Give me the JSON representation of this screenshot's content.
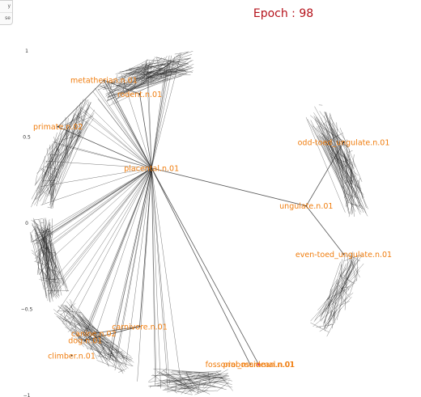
{
  "controls": {
    "buttons": [
      "y",
      "se"
    ]
  },
  "title": "Epoch : 98",
  "colors": {
    "title": "#b5121b",
    "label": "#f07d0e",
    "edge": "#222222",
    "highlight": "#d0409a"
  },
  "chart_data": {
    "type": "scatter",
    "title": "Epoch : 98",
    "xlim": [
      -1,
      1
    ],
    "ylim": [
      -1,
      1
    ],
    "yticks": [
      {
        "value": 1,
        "label": "1"
      },
      {
        "value": 0.5,
        "label": "0.5"
      },
      {
        "value": 0,
        "label": "0"
      },
      {
        "value": -0.5,
        "label": "−0.5"
      },
      {
        "value": -1,
        "label": "−1"
      }
    ],
    "grid": false,
    "nodes": [
      {
        "id": "placental",
        "label": "placental.n.01",
        "x": -0.28,
        "y": 0.32
      },
      {
        "id": "metatherian",
        "label": "metatherian.n.01",
        "x": -0.56,
        "y": 0.83
      },
      {
        "id": "rodent",
        "label": "rodent.n.01",
        "x": -0.35,
        "y": 0.75
      },
      {
        "id": "primate",
        "label": "primate.n.02",
        "x": -0.83,
        "y": 0.56
      },
      {
        "id": "odd_toed",
        "label": "odd-toed_ungulate.n.01",
        "x": 0.85,
        "y": 0.47
      },
      {
        "id": "ungulate",
        "label": "ungulate.n.01",
        "x": 0.63,
        "y": 0.1
      },
      {
        "id": "even_toed",
        "label": "even-toed_ungulate.n.01",
        "x": 0.85,
        "y": -0.18
      },
      {
        "id": "carnivore",
        "label": "carnivore.n.01",
        "x": -0.35,
        "y": -0.6
      },
      {
        "id": "canine",
        "label": "canine.n.02",
        "x": -0.62,
        "y": -0.64
      },
      {
        "id": "dog",
        "label": "dog.n.01",
        "x": -0.67,
        "y": -0.68
      },
      {
        "id": "climber",
        "label": "climber.n.01",
        "x": -0.75,
        "y": -0.77
      },
      {
        "id": "proboscidean",
        "label": "proboscidean.n.01",
        "x": 0.35,
        "y": -0.82
      },
      {
        "id": "fossorial",
        "label": "fossorial_mammal.n.01",
        "x": 0.3,
        "y": -0.82
      }
    ],
    "edges": [
      [
        "placental",
        "metatherian"
      ],
      [
        "placental",
        "rodent"
      ],
      [
        "placental",
        "primate"
      ],
      [
        "placental",
        "ungulate"
      ],
      [
        "placental",
        "carnivore"
      ],
      [
        "placental",
        "proboscidean"
      ],
      [
        "placental",
        "fossorial"
      ],
      [
        "ungulate",
        "odd_toed"
      ],
      [
        "ungulate",
        "even_toed"
      ],
      [
        "carnivore",
        "canine"
      ],
      [
        "carnivore",
        "dog"
      ],
      [
        "canine",
        "dog"
      ],
      [
        "primate",
        "metatherian"
      ],
      [
        "rodent",
        "metatherian"
      ]
    ]
  }
}
